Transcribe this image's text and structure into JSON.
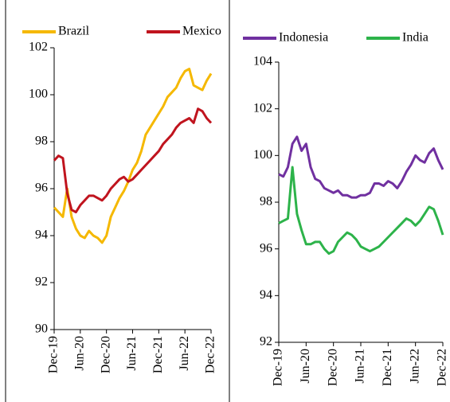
{
  "chart_data": [
    {
      "type": "line",
      "categories": [
        "Dec-19",
        null,
        null,
        null,
        null,
        null,
        "Jun-20",
        null,
        null,
        null,
        null,
        null,
        "Dec-20",
        null,
        null,
        null,
        null,
        null,
        "Jun-21",
        null,
        null,
        null,
        null,
        null,
        "Dec-21",
        null,
        null,
        null,
        null,
        null,
        "Jun-22",
        null,
        null,
        null,
        null,
        null,
        "Dec-22"
      ],
      "series": [
        {
          "name": "Brazil",
          "color": "#f5b800",
          "values": [
            95.2,
            95.0,
            94.8,
            96.0,
            94.8,
            94.3,
            94.0,
            93.9,
            94.2,
            94.0,
            93.9,
            93.7,
            94.0,
            94.8,
            95.2,
            95.6,
            95.9,
            96.3,
            96.8,
            97.1,
            97.6,
            98.3,
            98.6,
            98.9,
            99.2,
            99.5,
            99.9,
            100.1,
            100.3,
            100.7,
            101.0,
            101.1,
            100.4,
            100.3,
            100.2,
            100.6,
            100.9
          ]
        },
        {
          "name": "Mexico",
          "color": "#c0141e",
          "values": [
            97.2,
            97.4,
            97.3,
            95.8,
            95.1,
            95.0,
            95.3,
            95.5,
            95.7,
            95.7,
            95.6,
            95.5,
            95.7,
            96.0,
            96.2,
            96.4,
            96.5,
            96.3,
            96.4,
            96.6,
            96.8,
            97.0,
            97.2,
            97.4,
            97.6,
            97.9,
            98.1,
            98.3,
            98.6,
            98.8,
            98.9,
            99.0,
            98.8,
            99.4,
            99.3,
            99.0,
            98.8
          ]
        }
      ],
      "ylim": [
        90,
        102
      ],
      "yticks": [
        90,
        92,
        94,
        96,
        98,
        100,
        102
      ],
      "legend": "top"
    },
    {
      "type": "line",
      "categories": [
        "Dec-19",
        null,
        null,
        null,
        null,
        null,
        "Jun-20",
        null,
        null,
        null,
        null,
        null,
        "Dec-20",
        null,
        null,
        null,
        null,
        null,
        "Jun-21",
        null,
        null,
        null,
        null,
        null,
        "Dec-21",
        null,
        null,
        null,
        null,
        null,
        "Jun-22",
        null,
        null,
        null,
        null,
        null,
        "Dec-22"
      ],
      "series": [
        {
          "name": "Indonesia",
          "color": "#7030a0",
          "values": [
            99.2,
            99.1,
            99.5,
            100.5,
            100.8,
            100.2,
            100.5,
            99.5,
            99.0,
            98.9,
            98.6,
            98.5,
            98.4,
            98.5,
            98.3,
            98.3,
            98.2,
            98.2,
            98.3,
            98.3,
            98.4,
            98.8,
            98.8,
            98.7,
            98.9,
            98.8,
            98.6,
            98.9,
            99.3,
            99.6,
            100.0,
            99.8,
            99.7,
            100.1,
            100.3,
            99.8,
            99.4
          ]
        },
        {
          "name": "India",
          "color": "#2db34a",
          "values": [
            97.1,
            97.2,
            97.3,
            99.5,
            97.5,
            96.8,
            96.2,
            96.2,
            96.3,
            96.3,
            96.0,
            95.8,
            95.9,
            96.3,
            96.5,
            96.7,
            96.6,
            96.4,
            96.1,
            96.0,
            95.9,
            96.0,
            96.1,
            96.3,
            96.5,
            96.7,
            96.9,
            97.1,
            97.3,
            97.2,
            97.0,
            97.2,
            97.5,
            97.8,
            97.7,
            97.2,
            96.6
          ]
        }
      ],
      "ylim": [
        92,
        104
      ],
      "yticks": [
        92,
        94,
        96,
        98,
        100,
        102,
        104
      ],
      "legend": "top"
    }
  ]
}
